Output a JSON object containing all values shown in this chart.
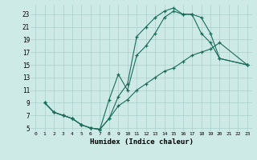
{
  "xlabel": "Humidex (Indice chaleur)",
  "bg_color": "#ceeae6",
  "grid_color": "#aacfcc",
  "line_color": "#1a6b5a",
  "xlim": [
    -0.5,
    23.5
  ],
  "ylim": [
    4.5,
    24.5
  ],
  "xticks": [
    0,
    1,
    2,
    3,
    4,
    5,
    6,
    7,
    8,
    9,
    10,
    11,
    12,
    13,
    14,
    15,
    16,
    17,
    18,
    19,
    20,
    21,
    22,
    23
  ],
  "yticks": [
    5,
    7,
    9,
    11,
    13,
    15,
    17,
    19,
    21,
    23
  ],
  "line1_x": [
    1,
    2,
    3,
    4,
    5,
    6,
    7,
    8,
    9,
    10,
    11,
    12,
    13,
    14,
    15,
    16,
    17,
    18,
    19,
    20,
    23
  ],
  "line1_y": [
    9,
    7.5,
    7,
    6.5,
    5.5,
    5,
    4.8,
    6.5,
    10,
    12,
    19.5,
    21,
    22.5,
    23.5,
    24,
    23,
    23,
    22.5,
    20,
    16,
    15
  ],
  "line2_x": [
    1,
    2,
    3,
    4,
    5,
    6,
    7,
    8,
    9,
    10,
    11,
    12,
    13,
    14,
    15,
    16,
    17,
    18,
    19,
    20,
    23
  ],
  "line2_y": [
    9,
    7.5,
    7,
    6.5,
    5.5,
    5,
    4.8,
    9.5,
    13.5,
    11,
    16.5,
    18,
    20,
    22.5,
    23.5,
    23,
    23,
    20,
    18.5,
    16,
    15
  ],
  "line3_x": [
    1,
    2,
    3,
    4,
    5,
    6,
    7,
    8,
    9,
    10,
    11,
    12,
    13,
    14,
    15,
    16,
    17,
    18,
    19,
    20,
    23
  ],
  "line3_y": [
    9,
    7.5,
    7,
    6.5,
    5.5,
    5,
    4.8,
    6.5,
    8.5,
    9.5,
    11,
    12,
    13,
    14,
    14.5,
    15.5,
    16.5,
    17,
    17.5,
    18.5,
    15
  ]
}
